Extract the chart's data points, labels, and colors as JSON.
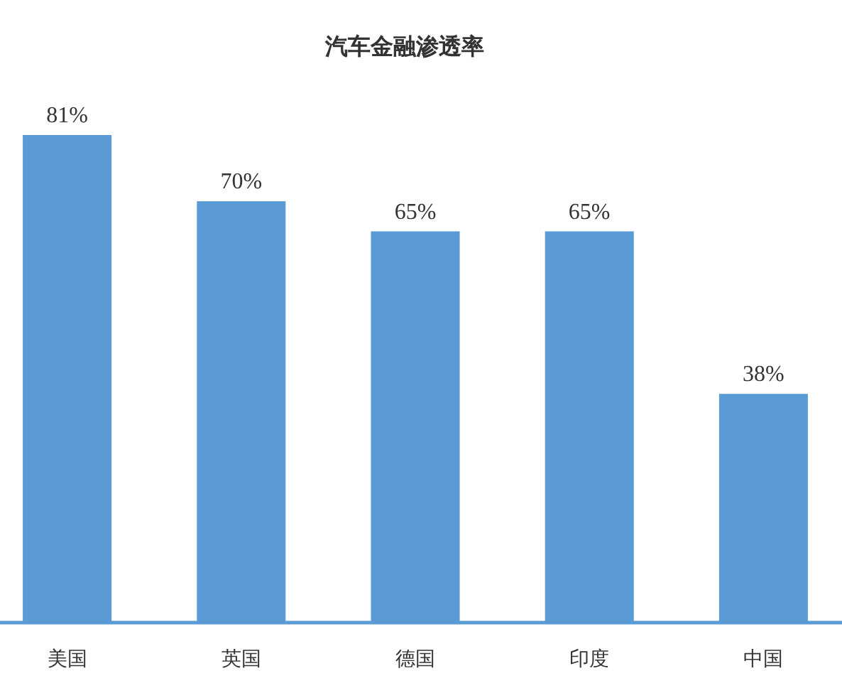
{
  "chart_data": {
    "type": "bar",
    "title": "汽车金融渗透率",
    "categories": [
      "美国",
      "英国",
      "德国",
      "印度",
      "中国"
    ],
    "values": [
      81,
      70,
      65,
      65,
      38
    ],
    "value_labels": [
      "81%",
      "70%",
      "65%",
      "65%",
      "38%"
    ],
    "color": "#5b9bd5"
  }
}
